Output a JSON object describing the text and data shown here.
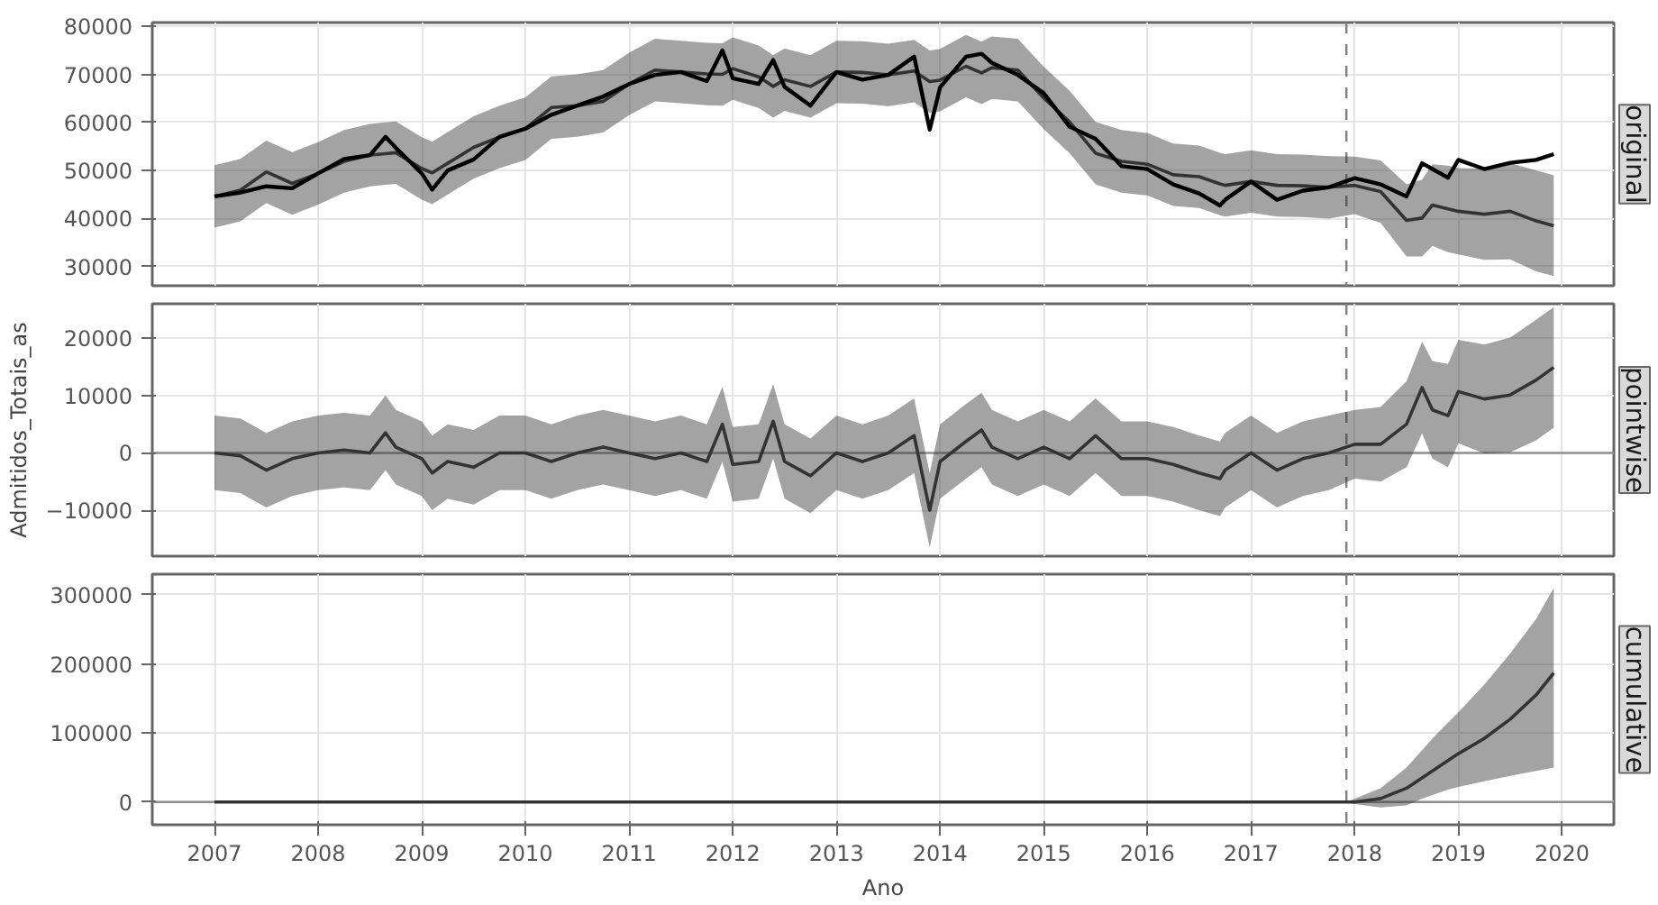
{
  "chart_data": [
    {
      "type": "line",
      "title": "original",
      "tick_labels": "y",
      "grid": true,
      "x": [
        2007.0,
        2007.25,
        2007.5,
        2007.75,
        2008.0,
        2008.25,
        2008.5,
        2008.65,
        2008.75,
        2009.0,
        2009.1,
        2009.25,
        2009.5,
        2009.75,
        2010.0,
        2010.25,
        2010.5,
        2010.75,
        2011.0,
        2011.25,
        2011.5,
        2011.75,
        2011.9,
        2012.0,
        2012.25,
        2012.39,
        2012.5,
        2012.75,
        2013.0,
        2013.25,
        2013.5,
        2013.75,
        2013.9,
        2014.0,
        2014.25,
        2014.4,
        2014.5,
        2014.75,
        2015.0,
        2015.25,
        2015.5,
        2015.75,
        2016.0,
        2016.25,
        2016.5,
        2016.7,
        2016.75,
        2017.0,
        2017.25,
        2017.5,
        2017.75,
        2018.0,
        2018.25,
        2018.5,
        2018.65,
        2018.75,
        2018.9,
        2019.0,
        2019.25,
        2019.5,
        2019.75,
        2019.92
      ],
      "series": [
        {
          "color": "#333333",
          "values": [
            44600,
            45900,
            49700,
            47300,
            49400,
            51900,
            53200,
            53500,
            53700,
            50400,
            49500,
            51500,
            54800,
            57000,
            58700,
            63100,
            63500,
            64400,
            68000,
            70900,
            70500,
            70100,
            70000,
            71200,
            69500,
            67500,
            68900,
            67500,
            70500,
            70400,
            69900,
            70700,
            68500,
            68800,
            71700,
            70300,
            71400,
            70900,
            65100,
            60100,
            53600,
            51900,
            51300,
            49100,
            48700,
            47200,
            46900,
            47700,
            46900,
            46800,
            46500,
            46900,
            45600,
            39600,
            40100,
            42800,
            42000,
            41500,
            40900,
            41500,
            39500,
            38500
          ],
          "lower": [
            38100,
            39400,
            43200,
            40800,
            42900,
            45400,
            46700,
            47000,
            47200,
            43900,
            43000,
            45000,
            48300,
            50500,
            52200,
            56600,
            57000,
            57900,
            61500,
            64400,
            64000,
            63600,
            63500,
            64700,
            63000,
            61000,
            62400,
            61000,
            64000,
            63900,
            63400,
            64200,
            62000,
            62300,
            65200,
            63800,
            64900,
            64400,
            58600,
            53600,
            47100,
            45400,
            44800,
            42600,
            42200,
            40700,
            40400,
            41200,
            40400,
            40300,
            40000,
            40900,
            39100,
            32100,
            32100,
            34300,
            33000,
            32500,
            31400,
            31500,
            29000,
            28000
          ],
          "upper": [
            51100,
            52400,
            56200,
            53800,
            55900,
            58400,
            59700,
            60000,
            60200,
            56900,
            56000,
            58000,
            61300,
            63500,
            65200,
            69600,
            70000,
            70900,
            74500,
            77400,
            77000,
            76600,
            76500,
            77700,
            76000,
            74000,
            75400,
            74000,
            77000,
            76900,
            76400,
            77200,
            75000,
            75300,
            78200,
            76800,
            77900,
            77400,
            71600,
            66600,
            60100,
            58400,
            57800,
            55600,
            55200,
            53700,
            53400,
            54200,
            53400,
            53300,
            53000,
            52900,
            52100,
            47100,
            48100,
            51300,
            51000,
            50500,
            50400,
            51500,
            50000,
            49000
          ]
        },
        {
          "color": "#000000",
          "values": [
            44600,
            45400,
            46700,
            46300,
            49400,
            52400,
            53200,
            57000,
            54700,
            49400,
            46000,
            50000,
            52300,
            57000,
            58700,
            61600,
            63500,
            65400,
            68000,
            69900,
            70500,
            68600,
            75000,
            69200,
            68000,
            73000,
            67400,
            63500,
            70500,
            68900,
            69900,
            73700,
            58500,
            67300,
            73700,
            74300,
            72400,
            69900,
            66100,
            59100,
            56600,
            50900,
            50300,
            47100,
            45200,
            42700,
            43900,
            47700,
            43900,
            45800,
            46500,
            48400,
            47100,
            44600,
            51500,
            50300,
            48500,
            52200,
            50300,
            51600,
            52200,
            53400
          ]
        }
      ],
      "xlim": [
        2006.4,
        2020.5
      ],
      "xticks": [
        2007,
        2008,
        2009,
        2010,
        2011,
        2012,
        2013,
        2014,
        2015,
        2016,
        2017,
        2018,
        2019,
        2020
      ],
      "ylim": [
        26000,
        80800
      ],
      "yticks": [
        30000,
        40000,
        50000,
        60000,
        70000,
        80000
      ],
      "ref_lines": [
        {
          "axis": "x",
          "value": 2017.92,
          "color": "#808080",
          "line_style": "dashed"
        }
      ]
    },
    {
      "type": "line",
      "title": "pointwise",
      "ylabel": "Admitidos_Totais_as",
      "tick_labels": "y",
      "grid": true,
      "x": [
        2007.0,
        2007.25,
        2007.5,
        2007.75,
        2008.0,
        2008.25,
        2008.5,
        2008.65,
        2008.75,
        2009.0,
        2009.1,
        2009.25,
        2009.5,
        2009.75,
        2010.0,
        2010.25,
        2010.5,
        2010.75,
        2011.0,
        2011.25,
        2011.5,
        2011.75,
        2011.9,
        2012.0,
        2012.25,
        2012.39,
        2012.5,
        2012.75,
        2013.0,
        2013.25,
        2013.5,
        2013.75,
        2013.9,
        2014.0,
        2014.25,
        2014.4,
        2014.5,
        2014.75,
        2015.0,
        2015.25,
        2015.5,
        2015.75,
        2016.0,
        2016.25,
        2016.5,
        2016.7,
        2016.75,
        2017.0,
        2017.25,
        2017.5,
        2017.75,
        2018.0,
        2018.25,
        2018.5,
        2018.65,
        2018.75,
        2018.9,
        2019.0,
        2019.25,
        2019.5,
        2019.75,
        2019.92
      ],
      "series": [
        {
          "color": "#333333",
          "values": [
            0,
            -500,
            -3000,
            -1000,
            0,
            500,
            0,
            3500,
            1000,
            -1000,
            -3500,
            -1500,
            -2500,
            0,
            0,
            -1500,
            0,
            1000,
            0,
            -1000,
            0,
            -1500,
            5000,
            -2000,
            -1500,
            5500,
            -1500,
            -4000,
            0,
            -1500,
            0,
            3000,
            -10000,
            -1500,
            2000,
            4000,
            1000,
            -1000,
            1000,
            -1000,
            3000,
            -1000,
            -1000,
            -2000,
            -3500,
            -4500,
            -3000,
            0,
            -3000,
            -1000,
            0,
            1500,
            1500,
            5000,
            11400,
            7500,
            6500,
            10700,
            9400,
            10100,
            12700,
            14900
          ],
          "lower": [
            -6500,
            -7000,
            -9500,
            -7500,
            -6500,
            -6000,
            -6500,
            -3000,
            -5500,
            -7500,
            -10000,
            -8000,
            -9000,
            -6500,
            -6500,
            -8000,
            -6500,
            -5500,
            -6500,
            -7500,
            -6500,
            -8000,
            -1500,
            -8500,
            -8000,
            -1000,
            -8000,
            -10500,
            -6500,
            -8000,
            -6500,
            -3500,
            -16500,
            -8000,
            -4500,
            -2500,
            -5500,
            -7500,
            -5500,
            -7500,
            -3500,
            -7500,
            -7500,
            -8500,
            -10000,
            -11000,
            -9500,
            -6500,
            -9500,
            -7500,
            -6500,
            -4500,
            -5000,
            -2500,
            3400,
            -1000,
            -2500,
            1700,
            -100,
            100,
            2200,
            4400
          ],
          "upper": [
            6500,
            6000,
            3500,
            5500,
            6500,
            7000,
            6500,
            10000,
            7500,
            5500,
            3000,
            5000,
            4000,
            6500,
            6500,
            5000,
            6500,
            7500,
            6500,
            5500,
            6500,
            5000,
            11500,
            4500,
            5000,
            12000,
            5000,
            2500,
            6500,
            5000,
            6500,
            9500,
            -3500,
            5000,
            8500,
            10500,
            7500,
            5500,
            7500,
            5500,
            9500,
            5500,
            5500,
            4500,
            3000,
            2000,
            3500,
            6500,
            3500,
            5500,
            6500,
            7500,
            8000,
            12500,
            19400,
            16000,
            15500,
            19700,
            18900,
            20100,
            23200,
            25400
          ]
        }
      ],
      "xlim": [
        2006.4,
        2020.5
      ],
      "xticks": [
        2007,
        2008,
        2009,
        2010,
        2011,
        2012,
        2013,
        2014,
        2015,
        2016,
        2017,
        2018,
        2019,
        2020
      ],
      "ylim": [
        -18000,
        26000
      ],
      "yticks": [
        -10000,
        0,
        10000,
        20000
      ],
      "ref_lines": [
        {
          "axis": "y",
          "value": 0,
          "color": "#909090",
          "line_style": "solid"
        },
        {
          "axis": "x",
          "value": 2017.92,
          "color": "#808080",
          "line_style": "dashed"
        }
      ]
    },
    {
      "type": "line",
      "title": "cumulative",
      "xlabel": "Ano",
      "grid": true,
      "x": [
        2007.0,
        2017.92,
        2018.0,
        2018.25,
        2018.5,
        2018.65,
        2018.75,
        2018.9,
        2019.0,
        2019.25,
        2019.5,
        2019.75,
        2019.92
      ],
      "series": [
        {
          "color": "#333333",
          "values": [
            0,
            0,
            0,
            5000,
            20000,
            35000,
            45000,
            60000,
            70000,
            92000,
            120000,
            155000,
            187000
          ],
          "lower": [
            0,
            0,
            -3000,
            -8000,
            -5000,
            5000,
            10000,
            18000,
            22000,
            30000,
            38000,
            45000,
            50000
          ],
          "upper": [
            0,
            0,
            5000,
            20000,
            50000,
            75000,
            92000,
            115000,
            130000,
            170000,
            215000,
            265000,
            310000
          ]
        }
      ],
      "xlim": [
        2006.4,
        2020.5
      ],
      "xticks": [
        2007,
        2008,
        2009,
        2010,
        2011,
        2012,
        2013,
        2014,
        2015,
        2016,
        2017,
        2018,
        2019,
        2020
      ],
      "ylim": [
        -33000,
        330000
      ],
      "yticks": [
        0,
        100000,
        200000,
        300000
      ],
      "ref_lines": [
        {
          "axis": "y",
          "value": 0,
          "color": "#909090",
          "line_style": "solid"
        },
        {
          "axis": "x",
          "value": 2017.92,
          "color": "#808080",
          "line_style": "dashed"
        }
      ]
    }
  ]
}
